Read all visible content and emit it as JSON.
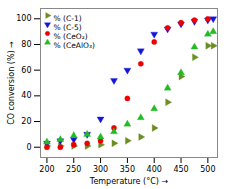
{
  "chart_data": {
    "type": "scatter",
    "xlabel": "Temperature (°C)",
    "ylabel": "CO conversion (%)",
    "xlim": [
      188,
      518
    ],
    "ylim": [
      -8,
      108
    ],
    "xticks": [
      200,
      250,
      300,
      350,
      400,
      450,
      500
    ],
    "yticks": [
      0,
      20,
      40,
      60,
      80,
      100
    ],
    "grid": false,
    "legend": "upper left",
    "series": [
      {
        "name": "% (C-1)",
        "color": "#6B8E23",
        "marker": "triangle_right",
        "x": [
          200,
          225,
          250,
          275,
          300,
          325,
          350,
          375,
          400,
          425,
          450,
          475,
          500,
          510
        ],
        "values": [
          1,
          1,
          1,
          1,
          2,
          3,
          5,
          8,
          15,
          35,
          55,
          70,
          79,
          79
        ]
      },
      {
        "name": "% (C-5)",
        "color": "#1515DC",
        "marker": "triangle_down",
        "x": [
          200,
          225,
          250,
          275,
          300,
          325,
          350,
          375,
          400,
          425,
          450,
          475,
          500,
          510
        ],
        "values": [
          3,
          5,
          6,
          10,
          22,
          52,
          60,
          75,
          88,
          92,
          96,
          98,
          99,
          100
        ]
      },
      {
        "name": "% (CeO₂)",
        "color": "#EE0000",
        "marker": "circle",
        "x": [
          200,
          225,
          250,
          275,
          300,
          325,
          350,
          375,
          400,
          425,
          450,
          475,
          500
        ],
        "values": [
          0,
          0,
          2,
          3,
          5,
          15,
          38,
          65,
          82,
          93,
          97,
          99,
          100
        ]
      },
      {
        "name": "% (CeAlO₃)",
        "color": "#22BB22",
        "marker": "triangle_up",
        "x": [
          200,
          225,
          250,
          275,
          300,
          325,
          350,
          375,
          400,
          425,
          450,
          475,
          500,
          510
        ],
        "values": [
          4,
          6,
          9,
          10,
          8,
          12,
          18,
          23,
          30,
          46,
          58,
          78,
          88,
          90
        ]
      }
    ]
  }
}
